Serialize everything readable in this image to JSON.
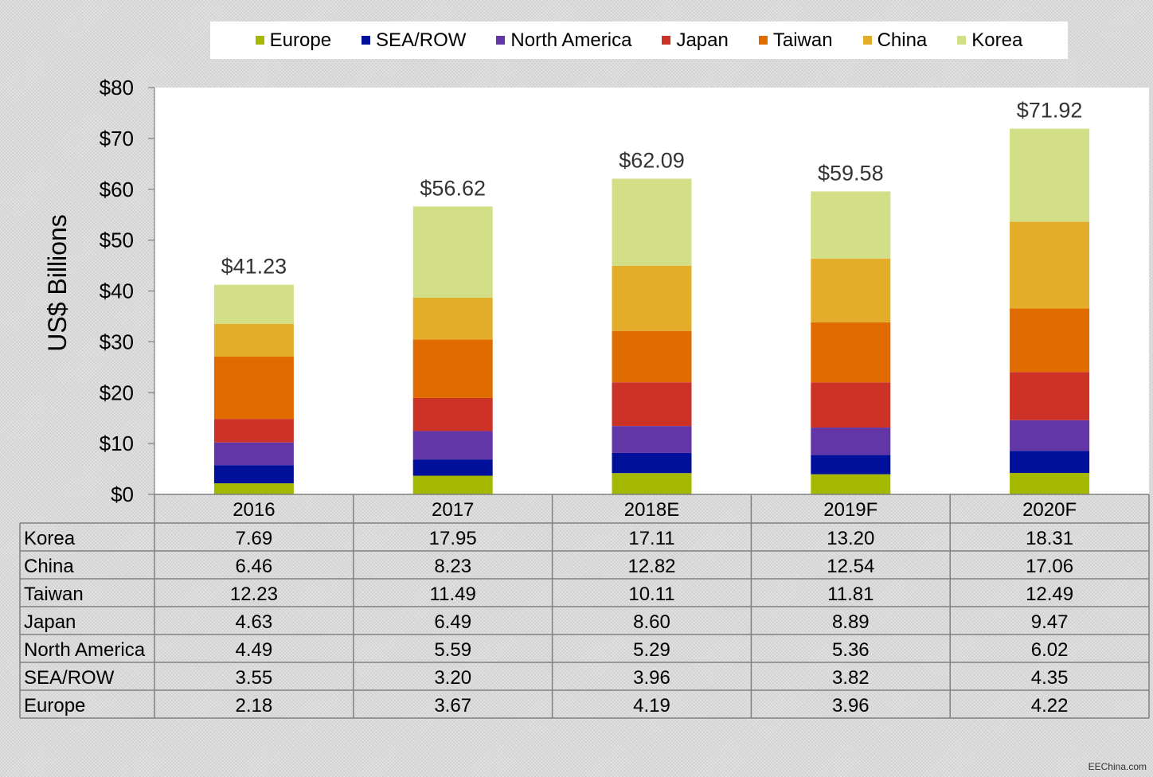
{
  "chart_data": {
    "type": "bar",
    "stacked": true,
    "ylabel": "US$ Billions",
    "ylim": [
      0,
      80
    ],
    "yticks": [
      "$0",
      "$10",
      "$20",
      "$30",
      "$40",
      "$50",
      "$60",
      "$70",
      "$80"
    ],
    "ytick_values": [
      0,
      10,
      20,
      30,
      40,
      50,
      60,
      70,
      80
    ],
    "categories": [
      "2016",
      "2017",
      "2018E",
      "2019F",
      "2020F"
    ],
    "totals": [
      "$41.23",
      "$56.62",
      "$62.09",
      "$59.58",
      "$71.92"
    ],
    "total_values": [
      41.23,
      56.62,
      62.09,
      59.58,
      71.92
    ],
    "legend_position": "top",
    "grid": false,
    "series": [
      {
        "name": "Europe",
        "color": "#a4b800",
        "values": [
          2.18,
          3.67,
          4.19,
          3.96,
          4.22
        ],
        "labels": [
          "2.18",
          "3.67",
          "4.19",
          "3.96",
          "4.22"
        ]
      },
      {
        "name": "SEA/ROW",
        "color": "#00109a",
        "values": [
          3.55,
          3.2,
          3.96,
          3.82,
          4.35
        ],
        "labels": [
          "3.55",
          "3.20",
          "3.96",
          "3.82",
          "4.35"
        ]
      },
      {
        "name": "North America",
        "color": "#6236a6",
        "values": [
          4.49,
          5.59,
          5.29,
          5.36,
          6.02
        ],
        "labels": [
          "4.49",
          "5.59",
          "5.29",
          "5.36",
          "6.02"
        ]
      },
      {
        "name": "Japan",
        "color": "#cc3226",
        "values": [
          4.63,
          6.49,
          8.6,
          8.89,
          9.47
        ],
        "labels": [
          "4.63",
          "6.49",
          "8.60",
          "8.89",
          "9.47"
        ]
      },
      {
        "name": "Taiwan",
        "color": "#e06c00",
        "values": [
          12.23,
          11.49,
          10.11,
          11.81,
          12.49
        ],
        "labels": [
          "12.23",
          "11.49",
          "10.11",
          "11.81",
          "12.49"
        ]
      },
      {
        "name": "China",
        "color": "#e3ad2a",
        "values": [
          6.46,
          8.23,
          12.82,
          12.54,
          17.06
        ],
        "labels": [
          "6.46",
          "8.23",
          "12.82",
          "12.54",
          "17.06"
        ]
      },
      {
        "name": "Korea",
        "color": "#d3df86",
        "values": [
          7.69,
          17.95,
          17.11,
          13.2,
          18.31
        ],
        "labels": [
          "7.69",
          "17.95",
          "17.11",
          "13.20",
          "18.31"
        ]
      }
    ],
    "table_row_order": [
      "Korea",
      "China",
      "Taiwan",
      "Japan",
      "North America",
      "SEA/ROW",
      "Europe"
    ]
  },
  "watermark": "EEChina.com"
}
